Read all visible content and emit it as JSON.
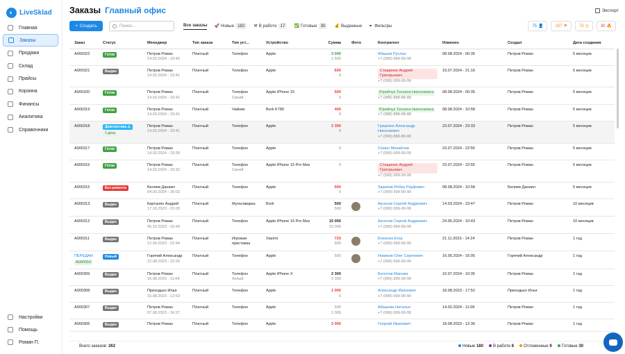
{
  "app": {
    "logo_text": "LiveSklad"
  },
  "sidebar": {
    "items": [
      {
        "label": "Главная",
        "icon": "home-icon"
      },
      {
        "label": "Заказы",
        "icon": "orders-icon",
        "active": true
      },
      {
        "label": "Продажи",
        "icon": "sales-icon"
      },
      {
        "label": "Склад",
        "icon": "warehouse-icon"
      },
      {
        "label": "Прайсы",
        "icon": "price-icon"
      },
      {
        "label": "Корзина",
        "icon": "cart-icon"
      },
      {
        "label": "Финансы",
        "icon": "finance-icon"
      },
      {
        "label": "Аналитика",
        "icon": "analytics-icon"
      },
      {
        "label": "Справочники",
        "icon": "reference-icon"
      }
    ],
    "bottom": [
      {
        "label": "Настройки",
        "icon": "settings-icon"
      },
      {
        "label": "Помощь",
        "icon": "help-icon"
      },
      {
        "label": "Роман П.",
        "icon": "user-icon"
      }
    ]
  },
  "header": {
    "title": "Заказы",
    "subtitle": "Главный офис",
    "export": "Экспорт"
  },
  "toolbar": {
    "create": "Создать",
    "search_placeholder": "Поиск...",
    "tabs": [
      {
        "label": "Все заказы",
        "count": ""
      },
      {
        "label": "Новые",
        "count": "182"
      },
      {
        "label": "В работе",
        "count": "17"
      },
      {
        "label": "Готовые",
        "count": "30"
      },
      {
        "label": "Выданные",
        "count": ""
      }
    ],
    "filters": "Фильтры",
    "counters": [
      "75",
      "167",
      "73",
      "30"
    ]
  },
  "table": {
    "headers": [
      "Заказ",
      "Статус",
      "Менеджер",
      "Тип заказа",
      "Тип уст...",
      "Устройство",
      "Сумма",
      "Фото",
      "Контрагент",
      "Изменен",
      "Создал",
      "Дата создания"
    ],
    "rows": [
      {
        "order": "A000322",
        "status": "Готов",
        "manager": "Петров Роман",
        "mdate": "14.03.2024 - 23:42",
        "otype": "Платный",
        "dtype": "Телефон",
        "dtype2": "",
        "device": "Apple",
        "sum1": "3 000",
        "sum2": "1 500",
        "contra": "Абашев Руслан",
        "phone": "+7 (999) 999-99-99",
        "changed": "08.08.2024 - 00:35",
        "created_by": "Петров Роман",
        "created": "5 месяцев"
      },
      {
        "order": "A000321",
        "status": "Выдан",
        "manager": "Петров Роман",
        "mdate": "14.03.2024 - 23:41",
        "otype": "Платный",
        "dtype": "Телефон",
        "dtype2": "",
        "device": "Apple",
        "sum1": "600",
        "sum2": "0",
        "contra": "Стащенко Андрей Григорьевич",
        "phone": "+7 (999) 999-99-99",
        "changed": "19.07.2024 - 21:16",
        "created_by": "Петров Роман",
        "created": "5 месяцев"
      },
      {
        "order": "A000320",
        "status": "Готов",
        "manager": "Петров Роман",
        "mdate": "14.03.2024 - 23:41",
        "otype": "Платный",
        "dtype": "Телефон",
        "dtype2": "Синий",
        "device": "Apple iPhone 15",
        "sum1": "500",
        "sum2": "0",
        "contra": "Юрийчук Татьяна Николаевна",
        "phone": "+7 (988) 888-88-88",
        "changed": "08.08.2024 - 00:35",
        "created_by": "Петров Роман",
        "created": "5 месяцев"
      },
      {
        "order": "A000319",
        "status": "Готов",
        "manager": "Петров Роман",
        "mdate": "14.03.2024 - 23:41",
        "otype": "Платный",
        "dtype": "Чайник",
        "dtype2": "",
        "device": "Bork K780",
        "sum1": "400",
        "sum2": "0",
        "contra": "Юрийчук Татьяна Николаевна",
        "phone": "+7 (988) 888-88-88",
        "changed": "08.08.2024 - 10:58",
        "created_by": "Петров Роман",
        "created": "5 месяцев"
      },
      {
        "order": "A000318",
        "status": "Диагностика ⚠",
        "status2": "1 день",
        "manager": "Петров Роман",
        "mdate": "14.03.2024 - 23:41",
        "otype": "Платный",
        "dtype": "Телефон",
        "dtype2": "",
        "device": "Apple",
        "sum1": "2 300",
        "sum2": "0",
        "contra": "Гриценко Александр Николаевич",
        "phone": "+7 (999) 888-88-88",
        "changed": "23.07.2024 - 23:33",
        "created_by": "Петров Роман",
        "created": "5 месяцев"
      },
      {
        "order": "A000317",
        "status": "Готов",
        "manager": "Петров Роман",
        "mdate": "14.03.2024 - 23:39",
        "otype": "Платный",
        "dtype": "Телефон",
        "dtype2": "",
        "device": "Apple",
        "sum1": "0",
        "sum2": "",
        "contra": "Семен Михайлов",
        "phone": "+7 (999) 999-99-99",
        "changed": "23.07.2024 - 22:55",
        "created_by": "Петров Роман",
        "created": "5 месяцев"
      },
      {
        "order": "A000316",
        "status": "Готов",
        "manager": "Петров Роман",
        "mdate": "14.03.2024 - 23:32",
        "otype": "Платный",
        "dtype": "Телефон",
        "dtype2": "Синий",
        "device": "Apple iPhone 15 Pro Max",
        "sum1": "0",
        "sum2": "",
        "contra": "Стащенко Андрей Григорьевич",
        "phone": "+7 (999) 999-99-99",
        "changed": "23.07.2024 - 22:55",
        "created_by": "Петров Роман",
        "created": "5 месяцев"
      },
      {
        "order": "A000315",
        "status": "Без ремонта",
        "manager": "Беляев Даниил",
        "mdate": "04.03.2024 - 20:02",
        "otype": "Платный",
        "dtype": "Телефон",
        "dtype2": "",
        "device": "Apple",
        "sum1": "500",
        "sum2": "0",
        "contra": "Зарипов Робер Рауфович",
        "phone": "+7 (999) 999-99-99",
        "changed": "08.08.2024 - 10:58",
        "created_by": "Беляев Даниил",
        "created": "5 месяцев"
      },
      {
        "order": "A000313",
        "status": "Выдан",
        "manager": "Картанян Андрей",
        "mdate": "17.10.2023 - 15:20",
        "otype": "Платный",
        "dtype": "Мультиварка",
        "dtype2": "",
        "device": "Bork",
        "sum1": "500",
        "sum2": "500",
        "contra": "Аксенов Сергей Андреевич",
        "phone": "+7 (999) 999-99-99",
        "changed": "14.03.2024 - 23:47",
        "created_by": "Петров Роман",
        "created": "10 месяцев"
      },
      {
        "order": "A000312",
        "status": "Выдан",
        "manager": "Петров Роман",
        "mdate": "05.10.2023 - 15:49",
        "otype": "Платный",
        "dtype": "Телефон",
        "dtype2": "",
        "device": "Apple iPhone 15 Pro Max",
        "sum1": "15 000",
        "sum2": "15 000",
        "contra": "Аксенов Сергей Андреевич",
        "phone": "+7 (999) 999-99-99",
        "changed": "24.05.2024 - 10:43",
        "created_by": "Петров Роман",
        "created": "10 месяцев"
      },
      {
        "order": "A000311",
        "status": "Выдан",
        "manager": "Петров Роман",
        "mdate": "12.09.2023 - 22:44",
        "otype": "Платный",
        "dtype": "Игровая приставка",
        "dtype2": "",
        "device": "Xiaomi",
        "sum1": "720",
        "sum2": "500",
        "contra": "Блезнюк Егор",
        "phone": "+7 (999) 999-99-99",
        "changed": "21.11.2023 - 14:24",
        "created_by": "Петров Роман",
        "created": "1 год"
      },
      {
        "order": "ПЕРЕДАН",
        "order2": "A000310",
        "status": "Новый",
        "manager": "Горячий Александр",
        "mdate": "22.08.2023 - 22:26",
        "otype": "Платный",
        "dtype": "Телефон",
        "dtype2": "",
        "device": "Apple",
        "sum1": "500",
        "sum2": "",
        "contra": "Новиков Олег Сергеевич",
        "phone": "+7 (999) 999-99-99",
        "changed": "16.05.2024 - 16:05",
        "created_by": "Горячий Александр",
        "created": "1 год"
      },
      {
        "order": "A000309",
        "status": "Выдан",
        "manager": "Петров Роман",
        "mdate": "16.08.2023 - 11:04",
        "otype": "Платный",
        "dtype": "Телефон",
        "dtype2": "белый",
        "device": "Apple iPhone X",
        "sum1": "2 300",
        "sum2": "2 300",
        "contra": "Болотов Максим",
        "phone": "+7 (999) 999-99-99",
        "changed": "10.07.2024 - 10:35",
        "created_by": "Петров Роман",
        "created": "1 год"
      },
      {
        "order": "A000308",
        "status": "Выдан",
        "manager": "Приходько Илья",
        "mdate": "15.08.2023 - 12:53",
        "otype": "Платный",
        "dtype": "Телефон",
        "dtype2": "",
        "device": "Apple",
        "sum1": "1 000",
        "sum2": "0",
        "contra": "Александр Иванович",
        "phone": "+7 (999) 999-99-99",
        "changed": "18.08.2023 - 17:52",
        "created_by": "Приходько Илья",
        "created": "1 год"
      },
      {
        "order": "A000307",
        "status": "Выдан",
        "manager": "Петров Роман",
        "mdate": "07.08.2023 - 16:27",
        "otype": "Платный",
        "dtype": "Телефон",
        "dtype2": "",
        "device": "Apple",
        "sum1": "500",
        "sum2": "1 000",
        "contra": "Абашева Наталья",
        "phone": "+7 (999) 999-99-99",
        "changed": "14.02.2024 - 11:06",
        "created_by": "Петров Роман",
        "created": "1 год"
      },
      {
        "order": "A000306",
        "status": "Выдан",
        "manager": "Петров Роман",
        "mdate": "",
        "otype": "Платный",
        "dtype": "Телефон",
        "dtype2": "",
        "device": "Apple",
        "sum1": "2 000",
        "sum2": "",
        "contra": "Георгий Иванович",
        "phone": "",
        "changed": "18.08.2023 - 12:36",
        "created_by": "Петров Роман",
        "created": "1 год"
      }
    ]
  },
  "footer": {
    "total_label": "Всего заказов:",
    "total": "262",
    "legend": [
      {
        "label": "Новые",
        "count": "180",
        "color": "#1e88e5"
      },
      {
        "label": "В работе",
        "count": "8",
        "color": "#8e24aa"
      },
      {
        "label": "Отложенные",
        "count": "9",
        "color": "#fb8c00"
      },
      {
        "label": "Готовые",
        "count": "30",
        "color": "#43a047"
      }
    ]
  }
}
